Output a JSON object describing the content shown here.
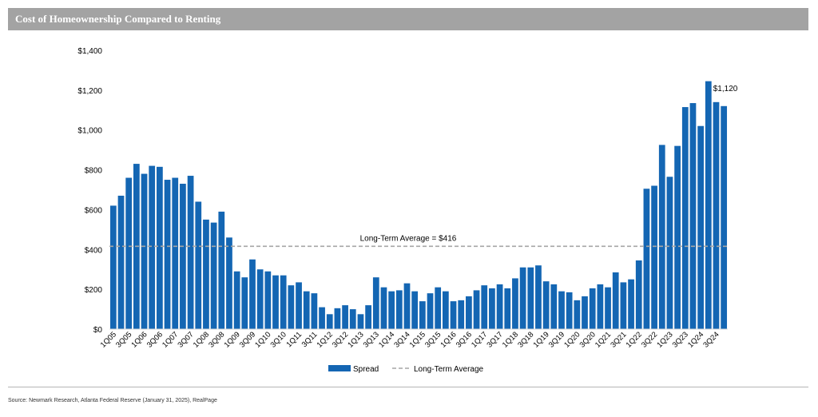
{
  "header": {
    "title": "Cost of Homeownership Compared to Renting"
  },
  "footer": {
    "source": "Source: Newmark Research, Atlanta Federal Reserve (January 31, 2025), RealPage"
  },
  "colors": {
    "bar": "#1466b3",
    "average_line": "#a6a6a6",
    "title_bar": "#a3a3a3"
  },
  "chart_data": {
    "type": "bar",
    "title": "Cost of Homeownership Compared to Renting",
    "xlabel": "",
    "ylabel": "",
    "ylim": [
      0,
      1400
    ],
    "y_ticks": [
      0,
      200,
      400,
      600,
      800,
      1000,
      1200,
      1400
    ],
    "y_tick_labels": [
      "$0",
      "$200",
      "$400",
      "$600",
      "$800",
      "$1,000",
      "$1,200",
      "$1,400"
    ],
    "categories": [
      "1Q05",
      "2Q05",
      "3Q05",
      "4Q05",
      "1Q06",
      "2Q06",
      "3Q06",
      "4Q06",
      "1Q07",
      "2Q07",
      "3Q07",
      "4Q07",
      "1Q08",
      "2Q08",
      "3Q08",
      "4Q08",
      "1Q09",
      "2Q09",
      "3Q09",
      "4Q09",
      "1Q10",
      "2Q10",
      "3Q10",
      "4Q10",
      "1Q11",
      "2Q11",
      "3Q11",
      "4Q11",
      "1Q12",
      "2Q12",
      "3Q12",
      "4Q12",
      "1Q13",
      "2Q13",
      "3Q13",
      "4Q13",
      "1Q14",
      "2Q14",
      "3Q14",
      "4Q14",
      "1Q15",
      "2Q15",
      "3Q15",
      "4Q15",
      "1Q16",
      "2Q16",
      "3Q16",
      "4Q16",
      "1Q17",
      "2Q17",
      "3Q17",
      "4Q17",
      "1Q18",
      "2Q18",
      "3Q18",
      "4Q18",
      "1Q19",
      "2Q19",
      "3Q19",
      "4Q19",
      "1Q20",
      "2Q20",
      "3Q20",
      "4Q20",
      "1Q21",
      "2Q21",
      "3Q21",
      "4Q21",
      "1Q22",
      "2Q22",
      "3Q22",
      "4Q22",
      "1Q23",
      "2Q23",
      "3Q23",
      "4Q23",
      "1Q24",
      "2Q24",
      "3Q24",
      "4Q24"
    ],
    "x_tick_labels": [
      "1Q05",
      "3Q05",
      "1Q06",
      "3Q06",
      "1Q07",
      "3Q07",
      "1Q08",
      "3Q08",
      "1Q09",
      "3Q09",
      "1Q10",
      "3Q10",
      "1Q11",
      "3Q11",
      "1Q12",
      "3Q12",
      "1Q13",
      "3Q13",
      "1Q14",
      "3Q14",
      "1Q15",
      "3Q15",
      "1Q16",
      "3Q16",
      "1Q17",
      "3Q17",
      "1Q18",
      "3Q18",
      "1Q19",
      "3Q19",
      "1Q20",
      "3Q20",
      "1Q21",
      "3Q21",
      "1Q22",
      "3Q22",
      "1Q23",
      "3Q23",
      "1Q24",
      "3Q24"
    ],
    "series": [
      {
        "name": "Spread",
        "values": [
          620,
          670,
          760,
          830,
          780,
          820,
          815,
          750,
          760,
          730,
          770,
          640,
          550,
          535,
          590,
          460,
          290,
          260,
          350,
          300,
          290,
          270,
          270,
          220,
          235,
          190,
          180,
          110,
          75,
          105,
          120,
          100,
          75,
          120,
          260,
          210,
          190,
          195,
          230,
          190,
          140,
          180,
          210,
          190,
          140,
          145,
          165,
          195,
          220,
          205,
          225,
          205,
          255,
          310,
          310,
          320,
          240,
          225,
          190,
          185,
          145,
          165,
          205,
          225,
          210,
          285,
          235,
          250,
          345,
          705,
          720,
          925,
          765,
          920,
          1115,
          1135,
          1020,
          1245,
          1140,
          1120
        ]
      },
      {
        "name": "Long-Term Average",
        "value": 416
      }
    ],
    "annotations": [
      {
        "text": "Long-Term Average = $416"
      },
      {
        "text": "$1,120"
      }
    ],
    "legend_position": "bottom",
    "grid": false
  }
}
